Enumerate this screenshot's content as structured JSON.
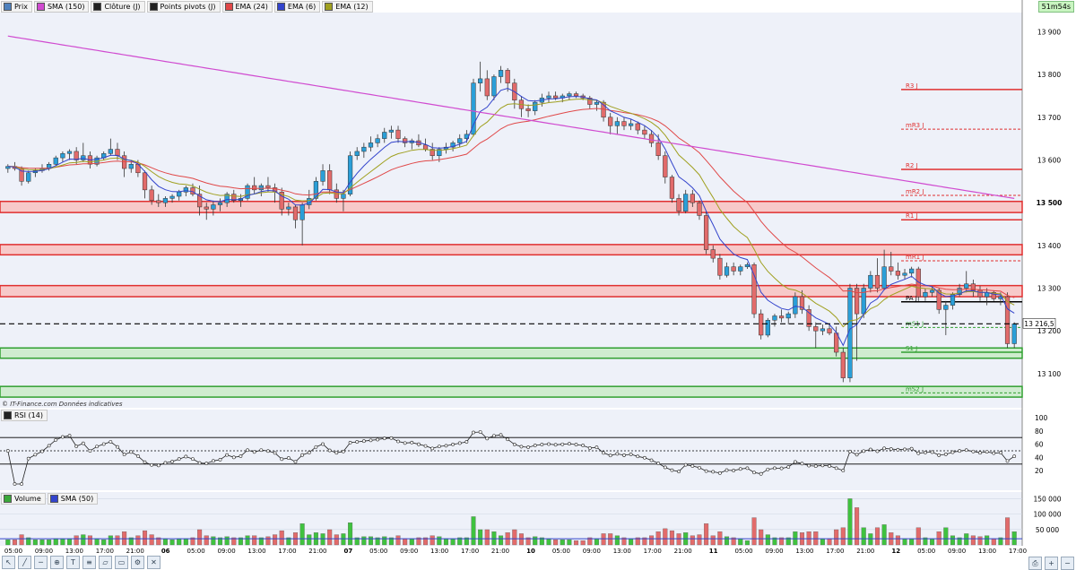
{
  "clock": "51m54s",
  "legend": [
    {
      "label": "Prix",
      "color": "#4f81bd"
    },
    {
      "label": "SMA (150)",
      "color": "#d04bd0"
    },
    {
      "label": "Clôture (J)",
      "color": "#222222"
    },
    {
      "label": "Points pivots (J)",
      "color": "#222222"
    },
    {
      "label": "EMA (24)",
      "color": "#e04848"
    },
    {
      "label": "EMA (6)",
      "color": "#3344cc"
    },
    {
      "label": "EMA (12)",
      "color": "#a0a020"
    }
  ],
  "copyright": "© IT-Finance.com  Données indicatives",
  "rsi_legend": "RSI (14)",
  "volume_legend": [
    {
      "label": "Volume",
      "color": "#3aa83a"
    },
    {
      "label": "SMA (50)",
      "color": "#3344cc"
    }
  ],
  "chart_data": {
    "type": "candlestick",
    "y_range_price": [
      13020,
      13945
    ],
    "price_ticks": [
      13100,
      13200,
      13300,
      13400,
      13500,
      13600,
      13700,
      13800,
      13900
    ],
    "price_tick_labels": [
      "13 100",
      "13 200",
      "13 300",
      "13 400",
      "13 500",
      "13 600",
      "13 700",
      "13 800",
      "13 900"
    ],
    "current_price": 13216.5,
    "current_price_label": "13 216,5",
    "pivot_levels": [
      {
        "label": "R3 J",
        "value": 13765,
        "style": "solid",
        "color": "#e03030"
      },
      {
        "label": "mR3 J",
        "value": 13672,
        "style": "dashed",
        "color": "#e03030"
      },
      {
        "label": "R2 J",
        "value": 13578,
        "style": "solid",
        "color": "#e03030"
      },
      {
        "label": "mR2 J",
        "value": 13517,
        "style": "dashed",
        "color": "#e03030"
      },
      {
        "label": "R1 J",
        "value": 13460,
        "style": "solid",
        "color": "#e03030"
      },
      {
        "label": "mR1 J",
        "value": 13364,
        "style": "dashed",
        "color": "#e03030"
      },
      {
        "label": "PA J",
        "value": 13268,
        "style": "solid",
        "color": "#000000"
      },
      {
        "label": "mS1 J",
        "value": 13208,
        "style": "dashed",
        "color": "#30a030"
      },
      {
        "label": "S1 J",
        "value": 13150,
        "style": "solid",
        "color": "#30a030"
      },
      {
        "label": "mS2 J",
        "value": 13055,
        "style": "dashed",
        "color": "#30a030"
      }
    ],
    "resistance_zones": [
      [
        13477,
        13503
      ],
      [
        13378,
        13402
      ],
      [
        13280,
        13306
      ]
    ],
    "support_zones": [
      [
        13136,
        13160
      ],
      [
        13045,
        13070
      ]
    ],
    "x_tick_labels": [
      "05:00",
      "09:00",
      "13:00",
      "17:00",
      "21:00",
      "06",
      "05:00",
      "09:00",
      "13:00",
      "17:00",
      "21:00",
      "07",
      "05:00",
      "09:00",
      "13:00",
      "17:00",
      "21:00",
      "10",
      "05:00",
      "09:00",
      "13:00",
      "17:00",
      "21:00",
      "11",
      "05:00",
      "09:00",
      "13:00",
      "17:00",
      "21:00",
      "12",
      "05:00",
      "09:00",
      "13:00",
      "17:00"
    ],
    "candles": [
      [
        13580,
        13590,
        13570,
        13585
      ],
      [
        13585,
        13595,
        13575,
        13580
      ],
      [
        13580,
        13585,
        13540,
        13550
      ],
      [
        13550,
        13575,
        13545,
        13570
      ],
      [
        13570,
        13580,
        13560,
        13575
      ],
      [
        13575,
        13590,
        13570,
        13580
      ],
      [
        13580,
        13595,
        13575,
        13590
      ],
      [
        13590,
        13610,
        13585,
        13605
      ],
      [
        13605,
        13620,
        13595,
        13615
      ],
      [
        13615,
        13625,
        13600,
        13620
      ],
      [
        13620,
        13630,
        13590,
        13600
      ],
      [
        13600,
        13640,
        13595,
        13610
      ],
      [
        13610,
        13620,
        13580,
        13590
      ],
      [
        13590,
        13610,
        13585,
        13605
      ],
      [
        13605,
        13620,
        13600,
        13615
      ],
      [
        13615,
        13650,
        13610,
        13625
      ],
      [
        13625,
        13640,
        13600,
        13610
      ],
      [
        13610,
        13620,
        13560,
        13580
      ],
      [
        13580,
        13600,
        13570,
        13590
      ],
      [
        13590,
        13600,
        13560,
        13570
      ],
      [
        13570,
        13575,
        13510,
        13530
      ],
      [
        13530,
        13540,
        13495,
        13505
      ],
      [
        13505,
        13520,
        13490,
        13500
      ],
      [
        13500,
        13515,
        13490,
        13510
      ],
      [
        13510,
        13520,
        13500,
        13515
      ],
      [
        13515,
        13530,
        13505,
        13525
      ],
      [
        13525,
        13540,
        13515,
        13535
      ],
      [
        13535,
        13545,
        13515,
        13520
      ],
      [
        13520,
        13540,
        13470,
        13490
      ],
      [
        13490,
        13500,
        13460,
        13485
      ],
      [
        13485,
        13505,
        13470,
        13495
      ],
      [
        13495,
        13510,
        13480,
        13500
      ],
      [
        13500,
        13525,
        13490,
        13520
      ],
      [
        13520,
        13530,
        13500,
        13505
      ],
      [
        13505,
        13520,
        13490,
        13510
      ],
      [
        13510,
        13545,
        13505,
        13540
      ],
      [
        13540,
        13560,
        13520,
        13530
      ],
      [
        13530,
        13545,
        13515,
        13540
      ],
      [
        13540,
        13560,
        13525,
        13535
      ],
      [
        13535,
        13545,
        13500,
        13525
      ],
      [
        13525,
        13535,
        13470,
        13485
      ],
      [
        13485,
        13500,
        13470,
        13490
      ],
      [
        13490,
        13495,
        13440,
        13460
      ],
      [
        13460,
        13500,
        13400,
        13495
      ],
      [
        13495,
        13530,
        13485,
        13510
      ],
      [
        13510,
        13560,
        13505,
        13550
      ],
      [
        13550,
        13590,
        13540,
        13575
      ],
      [
        13575,
        13590,
        13520,
        13530
      ],
      [
        13530,
        13545,
        13500,
        13510
      ],
      [
        13510,
        13530,
        13480,
        13520
      ],
      [
        13520,
        13620,
        13515,
        13610
      ],
      [
        13610,
        13630,
        13600,
        13620
      ],
      [
        13620,
        13640,
        13605,
        13630
      ],
      [
        13630,
        13655,
        13620,
        13640
      ],
      [
        13640,
        13660,
        13630,
        13650
      ],
      [
        13650,
        13675,
        13640,
        13665
      ],
      [
        13665,
        13680,
        13650,
        13670
      ],
      [
        13670,
        13680,
        13640,
        13650
      ],
      [
        13650,
        13655,
        13630,
        13640
      ],
      [
        13640,
        13650,
        13625,
        13645
      ],
      [
        13645,
        13660,
        13630,
        13635
      ],
      [
        13635,
        13650,
        13620,
        13625
      ],
      [
        13625,
        13640,
        13600,
        13610
      ],
      [
        13610,
        13630,
        13595,
        13625
      ],
      [
        13625,
        13640,
        13615,
        13630
      ],
      [
        13630,
        13645,
        13620,
        13640
      ],
      [
        13640,
        13660,
        13630,
        13650
      ],
      [
        13650,
        13670,
        13640,
        13660
      ],
      [
        13660,
        13790,
        13655,
        13780
      ],
      [
        13780,
        13830,
        13760,
        13790
      ],
      [
        13790,
        13810,
        13740,
        13750
      ],
      [
        13750,
        13800,
        13740,
        13795
      ],
      [
        13795,
        13820,
        13780,
        13810
      ],
      [
        13810,
        13815,
        13760,
        13780
      ],
      [
        13780,
        13790,
        13720,
        13740
      ],
      [
        13740,
        13750,
        13700,
        13720
      ],
      [
        13720,
        13730,
        13700,
        13715
      ],
      [
        13715,
        13740,
        13705,
        13735
      ],
      [
        13735,
        13755,
        13725,
        13745
      ],
      [
        13745,
        13760,
        13735,
        13750
      ],
      [
        13750,
        13760,
        13740,
        13745
      ],
      [
        13745,
        13755,
        13735,
        13750
      ],
      [
        13750,
        13760,
        13740,
        13755
      ],
      [
        13755,
        13760,
        13745,
        13750
      ],
      [
        13750,
        13755,
        13740,
        13745
      ],
      [
        13745,
        13750,
        13720,
        13730
      ],
      [
        13730,
        13740,
        13715,
        13735
      ],
      [
        13735,
        13740,
        13690,
        13700
      ],
      [
        13700,
        13710,
        13660,
        13680
      ],
      [
        13680,
        13700,
        13660,
        13690
      ],
      [
        13690,
        13700,
        13670,
        13680
      ],
      [
        13680,
        13695,
        13670,
        13685
      ],
      [
        13685,
        13690,
        13660,
        13670
      ],
      [
        13670,
        13680,
        13650,
        13660
      ],
      [
        13660,
        13670,
        13630,
        13640
      ],
      [
        13640,
        13660,
        13600,
        13610
      ],
      [
        13610,
        13620,
        13545,
        13560
      ],
      [
        13560,
        13565,
        13500,
        13510
      ],
      [
        13510,
        13520,
        13470,
        13480
      ],
      [
        13480,
        13530,
        13475,
        13520
      ],
      [
        13520,
        13530,
        13490,
        13500
      ],
      [
        13500,
        13505,
        13460,
        13470
      ],
      [
        13470,
        13480,
        13380,
        13390
      ],
      [
        13390,
        13400,
        13360,
        13370
      ],
      [
        13370,
        13380,
        13320,
        13330
      ],
      [
        13330,
        13360,
        13325,
        13350
      ],
      [
        13350,
        13360,
        13330,
        13340
      ],
      [
        13340,
        13355,
        13330,
        13350
      ],
      [
        13350,
        13360,
        13345,
        13355
      ],
      [
        13355,
        13360,
        13230,
        13240
      ],
      [
        13240,
        13250,
        13180,
        13190
      ],
      [
        13190,
        13230,
        13185,
        13225
      ],
      [
        13225,
        13240,
        13210,
        13235
      ],
      [
        13235,
        13250,
        13220,
        13230
      ],
      [
        13230,
        13245,
        13215,
        13240
      ],
      [
        13240,
        13290,
        13230,
        13280
      ],
      [
        13280,
        13295,
        13240,
        13250
      ],
      [
        13250,
        13260,
        13200,
        13210
      ],
      [
        13210,
        13220,
        13160,
        13200
      ],
      [
        13200,
        13215,
        13190,
        13205
      ],
      [
        13205,
        13215,
        13190,
        13195
      ],
      [
        13195,
        13210,
        13140,
        13150
      ],
      [
        13150,
        13160,
        13080,
        13090
      ],
      [
        13090,
        13310,
        13080,
        13300
      ],
      [
        13300,
        13310,
        13130,
        13240
      ],
      [
        13240,
        13310,
        13230,
        13300
      ],
      [
        13300,
        13340,
        13290,
        13330
      ],
      [
        13330,
        13370,
        13290,
        13300
      ],
      [
        13300,
        13390,
        13295,
        13350
      ],
      [
        13350,
        13385,
        13330,
        13340
      ],
      [
        13340,
        13360,
        13320,
        13330
      ],
      [
        13330,
        13345,
        13320,
        13335
      ],
      [
        13335,
        13350,
        13325,
        13345
      ],
      [
        13345,
        13350,
        13270,
        13280
      ],
      [
        13280,
        13300,
        13270,
        13290
      ],
      [
        13290,
        13305,
        13280,
        13295
      ],
      [
        13295,
        13300,
        13240,
        13250
      ],
      [
        13250,
        13270,
        13190,
        13260
      ],
      [
        13260,
        13290,
        13250,
        13285
      ],
      [
        13285,
        13310,
        13280,
        13300
      ],
      [
        13300,
        13340,
        13290,
        13310
      ],
      [
        13310,
        13320,
        13280,
        13295
      ],
      [
        13295,
        13305,
        13270,
        13280
      ],
      [
        13280,
        13300,
        13260,
        13290
      ],
      [
        13290,
        13295,
        13270,
        13275
      ],
      [
        13275,
        13290,
        13260,
        13280
      ],
      [
        13280,
        13290,
        13160,
        13170
      ],
      [
        13170,
        13220,
        13160,
        13216.5
      ]
    ],
    "rsi": {
      "range": [
        0,
        100
      ],
      "ticks": [
        20,
        40,
        60,
        80,
        100
      ],
      "levels": [
        30,
        50,
        70
      ]
    },
    "volume": {
      "ticks": [
        50000,
        100000,
        150000
      ],
      "tick_labels": [
        "50 000",
        "100 000",
        "150 000"
      ]
    }
  }
}
